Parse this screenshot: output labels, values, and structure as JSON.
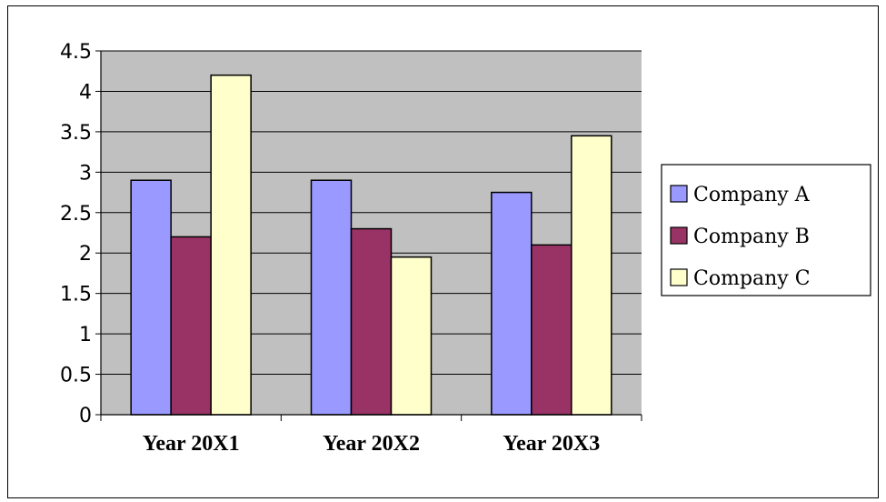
{
  "chart_data": {
    "type": "bar",
    "title": "",
    "xlabel": "",
    "ylabel": "",
    "categories": [
      "Year 20X1",
      "Year 20X2",
      "Year 20X3"
    ],
    "series": [
      {
        "name": "Company A",
        "color": "#9999FF",
        "values": [
          2.9,
          2.9,
          2.75
        ]
      },
      {
        "name": "Company B",
        "color": "#993366",
        "values": [
          2.2,
          2.3,
          2.1
        ]
      },
      {
        "name": "Company C",
        "color": "#FFFFCC",
        "values": [
          4.2,
          1.95,
          3.45
        ]
      }
    ],
    "ylim": [
      0,
      4.5
    ],
    "yticks": [
      "0",
      "0.5",
      "1",
      "1.5",
      "2",
      "2.5",
      "3",
      "3.5",
      "4",
      "4.5"
    ],
    "grid": true,
    "plot_background": "#C0C0C0",
    "legend_position": "right"
  }
}
